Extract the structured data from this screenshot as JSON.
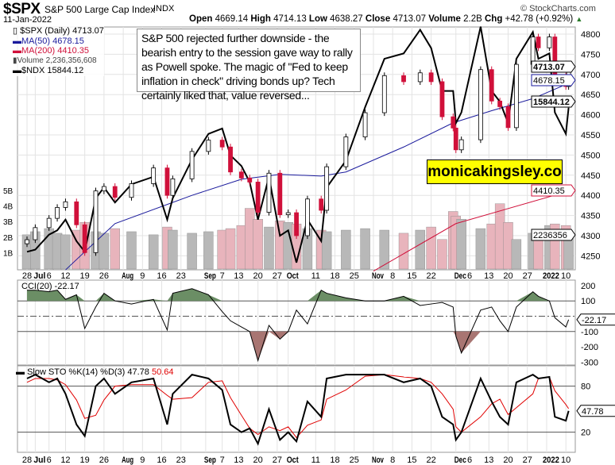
{
  "header": {
    "symbol": "$SPX",
    "name": "S&P 500 Large Cap Index",
    "exchange": "INDX",
    "date": "11-Jan-2022",
    "source": "© StockCharts.com",
    "open_label": "Open",
    "open": "4669.14",
    "high_label": "High",
    "high": "4714.13",
    "low_label": "Low",
    "low": "4638.27",
    "close_label": "Close",
    "close": "4713.07",
    "volume_label": "Volume",
    "volume": "2.2B",
    "chg_label": "Chg",
    "chg": "+42.78 (+0.92%)"
  },
  "legend": {
    "spx": "$SPX (Daily) 4713.07",
    "ma50": "MA(50) 4678.15",
    "ma200": "MA(200) 4410.35",
    "volume": "Volume 2,236,356,608",
    "ndx": "$NDX 15844.12"
  },
  "annotation": "S&P 500 rejected further downside - the bearish entry to the session gave way to rally as Powell spoke. The magic of \"Fed to keep inflation in check\" driving bonds up? Tech certainly liked that, value reversed...",
  "brand": "monicakingsley.co",
  "colors": {
    "up": "#000000",
    "down": "#d0103a",
    "ma50": "#1a1a9c",
    "ma200": "#d0103a",
    "volume_up": "#b8b8b8",
    "volume_down": "#e8b4bc",
    "cci_pos": "#6b8e65",
    "cci_neg": "#a87572",
    "sto_d": "#e00000"
  },
  "chart_data": [
    {
      "type": "candlestick",
      "title": "$SPX (Daily)",
      "ylim": [
        4210,
        4820
      ],
      "yticks": [
        4800,
        4750,
        4700,
        4650,
        4600,
        4550,
        4500,
        4450,
        4400,
        4350,
        4300,
        4250
      ],
      "dates": [
        "2021-06-28",
        "2021-07-01",
        "2021-07-06",
        "2021-07-09",
        "2021-07-12",
        "2021-07-16",
        "2021-07-19",
        "2021-07-23",
        "2021-07-26",
        "2021-07-30",
        "2021-08-05",
        "2021-08-13",
        "2021-08-18",
        "2021-08-20",
        "2021-08-27",
        "2021-09-02",
        "2021-09-07",
        "2021-09-10",
        "2021-09-14",
        "2021-09-17",
        "2021-09-20",
        "2021-09-24",
        "2021-09-28",
        "2021-10-01",
        "2021-10-04",
        "2021-10-08",
        "2021-10-13",
        "2021-10-15",
        "2021-10-22",
        "2021-10-29",
        "2021-11-05",
        "2021-11-12",
        "2021-11-18",
        "2021-11-22",
        "2021-11-26",
        "2021-11-30",
        "2021-12-01",
        "2021-12-03",
        "2021-12-10",
        "2021-12-14",
        "2021-12-17",
        "2021-12-20",
        "2021-12-23",
        "2021-12-29",
        "2021-12-31",
        "2022-01-04",
        "2022-01-06",
        "2022-01-10",
        "2022-01-11"
      ],
      "close": [
        4290,
        4320,
        4343,
        4370,
        4384,
        4327,
        4258,
        4411,
        4422,
        4395,
        4429,
        4468,
        4400,
        4441,
        4509,
        4537,
        4520,
        4458,
        4443,
        4433,
        4358,
        4455,
        4352,
        4357,
        4300,
        4391,
        4363,
        4471,
        4545,
        4605,
        4697,
        4682,
        4704,
        4682,
        4595,
        4567,
        4513,
        4538,
        4712,
        4634,
        4620,
        4568,
        4725,
        4793,
        4766,
        4793,
        4696,
        4670,
        4713.07
      ],
      "ndx": [
        14500,
        14520,
        14660,
        14700,
        14800,
        14600,
        14500,
        15000,
        15100,
        14960,
        15130,
        15200,
        14800,
        15000,
        15360,
        15600,
        15650,
        15400,
        15300,
        15150,
        14800,
        15200,
        14650,
        14700,
        14400,
        14800,
        14600,
        15100,
        15350,
        15850,
        16300,
        16350,
        16570,
        16400,
        16000,
        16000,
        15700,
        15800,
        16600,
        16000,
        15900,
        15700,
        16300,
        16550,
        16300,
        16350,
        15800,
        15600,
        15844.12
      ],
      "ma50": [
        [
          "2021-07-12",
          4215
        ],
        [
          "2021-07-19",
          4260
        ],
        [
          "2021-07-30",
          4330
        ],
        [
          "2021-08-27",
          4400
        ],
        [
          "2021-09-14",
          4440
        ],
        [
          "2021-09-28",
          4452
        ],
        [
          "2021-10-13",
          4448
        ],
        [
          "2021-10-22",
          4458
        ],
        [
          "2021-11-12",
          4520
        ],
        [
          "2021-11-30",
          4580
        ],
        [
          "2021-12-14",
          4610
        ],
        [
          "2021-12-29",
          4640
        ],
        [
          "2022-01-11",
          4678.15
        ]
      ],
      "ma200": [
        [
          "2021-11-01",
          4212
        ],
        [
          "2021-12-01",
          4330
        ],
        [
          "2022-01-11",
          4410.35
        ]
      ],
      "volume_ticks": [
        "1B",
        "2B",
        "3B",
        "4B",
        "5B"
      ],
      "volume_billions": [
        2.2,
        2.4,
        2.6,
        2.3,
        2.2,
        2.5,
        3.0,
        2.4,
        2.3,
        2.6,
        2.4,
        2.2,
        2.7,
        2.5,
        2.3,
        2.4,
        2.5,
        2.6,
        2.8,
        3.9,
        3.2,
        2.7,
        3.1,
        3.0,
        2.9,
        2.6,
        2.5,
        2.4,
        2.5,
        2.6,
        2.5,
        2.3,
        2.5,
        2.7,
        1.9,
        3.7,
        3.4,
        3.2,
        2.6,
        2.9,
        4.2,
        3.0,
        1.9,
        2.3,
        2.4,
        2.8,
        2.9,
        2.8,
        2.24
      ],
      "tags": {
        "close": "4713.07",
        "ma50": "4678.15",
        "ndx": "15844.12",
        "ma200": "4410.35",
        "volume": "2236356"
      }
    },
    {
      "type": "line",
      "title": "CCI(20) -22.17",
      "ylim": [
        -320,
        230
      ],
      "yticks": [
        200,
        100,
        -100,
        -200,
        -300
      ],
      "ytick_labels": [
        "200",
        "100",
        "-100",
        "-200",
        "-300"
      ],
      "values": [
        170,
        170,
        160,
        170,
        110,
        140,
        -80,
        60,
        150,
        100,
        80,
        110,
        -90,
        150,
        180,
        140,
        30,
        -30,
        -70,
        -100,
        -290,
        -60,
        -150,
        -100,
        40,
        -50,
        170,
        150,
        120,
        100,
        100,
        130,
        70,
        80,
        90,
        60,
        -130,
        -240,
        40,
        60,
        -30,
        -100,
        60,
        160,
        130,
        100,
        -10,
        -70,
        -22.17
      ],
      "tag": "-22.17"
    },
    {
      "type": "line",
      "title": "Slow STO %K(14) %D(3) 47.78",
      "title_d": "50.64",
      "ylim": [
        0,
        100
      ],
      "yticks": [
        80,
        20
      ],
      "ytick_labels": [
        "80",
        "20"
      ],
      "k": [
        90,
        95,
        85,
        90,
        70,
        30,
        15,
        80,
        90,
        70,
        85,
        90,
        30,
        70,
        95,
        90,
        75,
        30,
        20,
        25,
        5,
        50,
        10,
        20,
        8,
        60,
        40,
        90,
        95,
        95,
        95,
        85,
        90,
        80,
        40,
        30,
        10,
        20,
        90,
        60,
        40,
        30,
        85,
        95,
        90,
        92,
        40,
        35,
        47.78
      ],
      "d": [
        85,
        90,
        90,
        88,
        82,
        62,
        38,
        42,
        62,
        80,
        82,
        82,
        68,
        63,
        65,
        85,
        87,
        65,
        42,
        25,
        17,
        27,
        22,
        27,
        13,
        29,
        36,
        63,
        75,
        93,
        95,
        92,
        90,
        85,
        70,
        50,
        27,
        20,
        40,
        57,
        63,
        43,
        52,
        70,
        90,
        92,
        74,
        56,
        50.64
      ],
      "tag": "47.78"
    }
  ],
  "x_axis": [
    [
      "28",
      "2021-06-28"
    ],
    [
      "Jul",
      "2021-07-01"
    ],
    [
      "6",
      "2021-07-06"
    ],
    [
      "12",
      "2021-07-12"
    ],
    [
      "19",
      "2021-07-19"
    ],
    [
      "26",
      "2021-07-26"
    ],
    [
      "Aug",
      "2021-08-02"
    ],
    [
      "9",
      "2021-08-09"
    ],
    [
      "16",
      "2021-08-16"
    ],
    [
      "23",
      "2021-08-23"
    ],
    [
      "Sep",
      "2021-09-01"
    ],
    [
      "7",
      "2021-09-07"
    ],
    [
      "13",
      "2021-09-13"
    ],
    [
      "20",
      "2021-09-20"
    ],
    [
      "27",
      "2021-09-27"
    ],
    [
      "Oct",
      "2021-10-01"
    ],
    [
      "11",
      "2021-10-11"
    ],
    [
      "18",
      "2021-10-18"
    ],
    [
      "25",
      "2021-10-25"
    ],
    [
      "Nov",
      "2021-11-01"
    ],
    [
      "8",
      "2021-11-08"
    ],
    [
      "15",
      "2021-11-15"
    ],
    [
      "22",
      "2021-11-22"
    ],
    [
      "Dec",
      "2021-12-01"
    ],
    [
      "6",
      "2021-12-06"
    ],
    [
      "13",
      "2021-12-13"
    ],
    [
      "20",
      "2021-12-20"
    ],
    [
      "27",
      "2021-12-27"
    ],
    [
      "2022",
      "2022-01-03"
    ],
    [
      "10",
      "2022-01-10"
    ]
  ]
}
